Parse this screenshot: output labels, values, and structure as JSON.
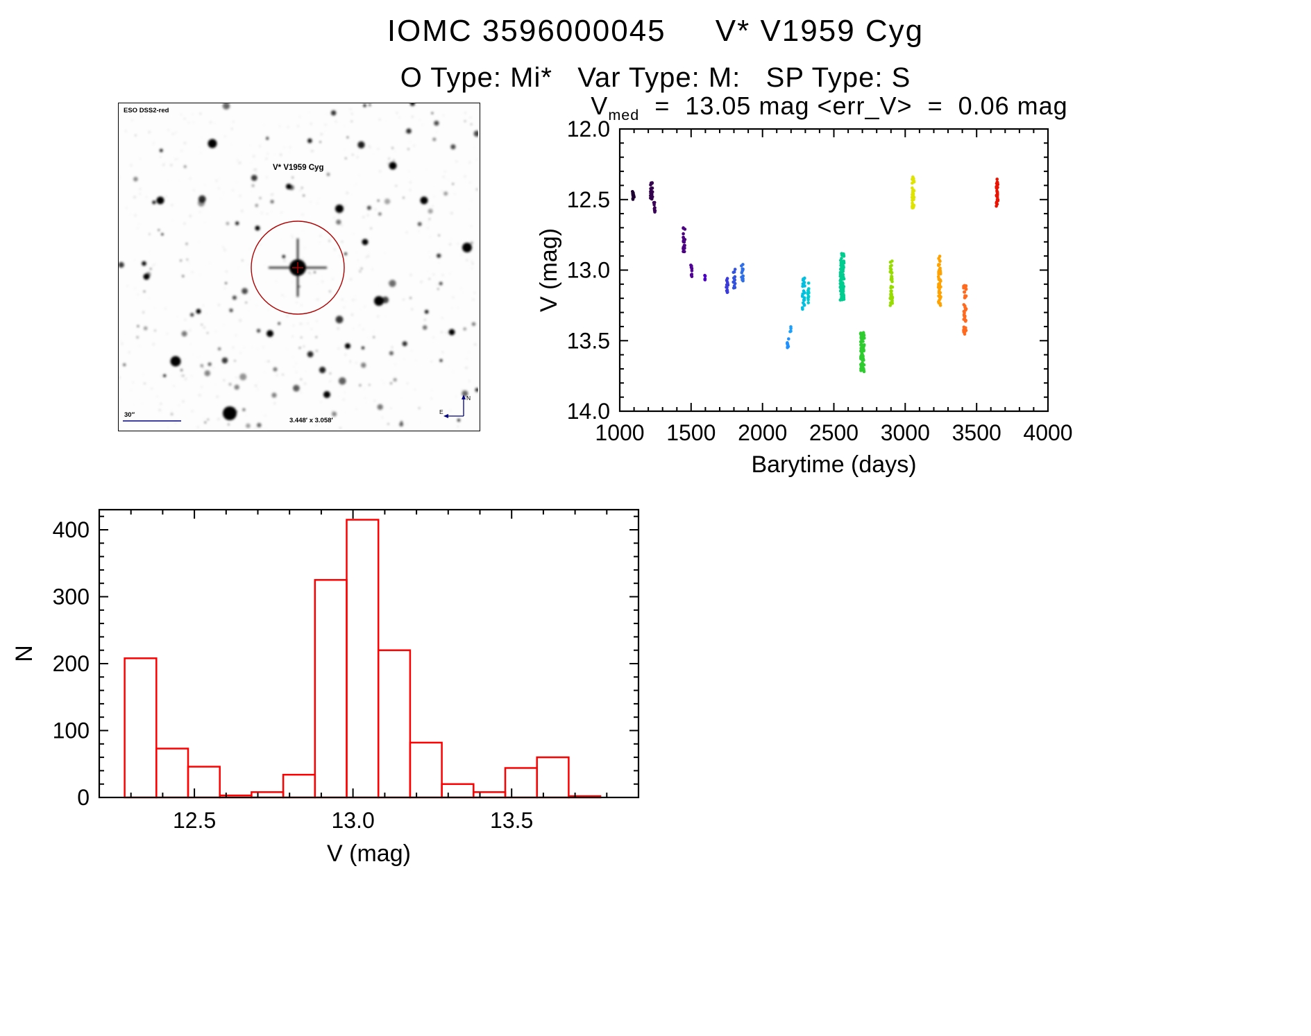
{
  "page": {
    "title": "IOMC 3596000045     V* V1959 Cyg",
    "subtitle": "O Type: Mi*   Var Type: M:   SP Type: S"
  },
  "finding_chart": {
    "survey_label": "ESO DSS2-red",
    "target_label": "V* V1959 Cyg",
    "scale_bar_label": "30″",
    "fov_label": "3.448′ x 3.058′",
    "compass": {
      "north": "N",
      "east": "E"
    },
    "annotation_color": "#000080",
    "marker_color": "#b00000"
  },
  "chart_data": [
    {
      "type": "scatter",
      "name": "lightcurve",
      "title": "Vmed  =  13.05 mag <err_V>  =  0.06 mag",
      "title_parts": {
        "prefix": "V",
        "sub": "med",
        "rest": "  =  13.05 mag <err_V>  =  0.06 mag"
      },
      "v_med_mag": 13.05,
      "err_v_mag": 0.06,
      "xlabel": "Barytime (days)",
      "ylabel": "V (mag)",
      "xlim": [
        1000,
        4000
      ],
      "ylim": [
        12.0,
        14.0
      ],
      "y_axis_reversed": true,
      "grid": false,
      "legend": "none",
      "minor_x_step": 100,
      "minor_y_step": 0.1,
      "xticks": [
        {
          "v": 1000,
          "label": "1000"
        },
        {
          "v": 1500,
          "label": "1500"
        },
        {
          "v": 2000,
          "label": "2000"
        },
        {
          "v": 2500,
          "label": "2500"
        },
        {
          "v": 3000,
          "label": "3000"
        },
        {
          "v": 3500,
          "label": "3500"
        },
        {
          "v": 4000,
          "label": "4000"
        }
      ],
      "yticks": [
        {
          "v": 12.0,
          "label": "12.0"
        },
        {
          "v": 12.5,
          "label": "12.5"
        },
        {
          "v": 13.0,
          "label": "13.0"
        },
        {
          "v": 13.5,
          "label": "13.5"
        },
        {
          "v": 14.0,
          "label": "14.0"
        }
      ],
      "clusters": [
        {
          "t": 1095,
          "t_spread": 6,
          "v_min": 12.44,
          "v_max": 12.5,
          "n": 14,
          "color": "#1c0030"
        },
        {
          "t": 1222,
          "t_spread": 8,
          "v_min": 12.38,
          "v_max": 12.5,
          "n": 26,
          "color": "#33004d"
        },
        {
          "t": 1243,
          "t_spread": 5,
          "v_min": 12.52,
          "v_max": 12.59,
          "n": 9,
          "color": "#3a0057"
        },
        {
          "t": 1450,
          "t_spread": 7,
          "v_min": 12.7,
          "v_max": 12.87,
          "n": 24,
          "color": "#4b0082"
        },
        {
          "t": 1502,
          "t_spread": 5,
          "v_min": 12.93,
          "v_max": 13.07,
          "n": 10,
          "color": "#500096"
        },
        {
          "t": 1598,
          "t_spread": 5,
          "v_min": 13.02,
          "v_max": 13.07,
          "n": 5,
          "color": "#4a00c0"
        },
        {
          "t": 1752,
          "t_spread": 7,
          "v_min": 13.04,
          "v_max": 13.16,
          "n": 13,
          "color": "#3b3bd9"
        },
        {
          "t": 1802,
          "t_spread": 7,
          "v_min": 12.97,
          "v_max": 13.13,
          "n": 15,
          "color": "#3353de"
        },
        {
          "t": 1858,
          "t_spread": 7,
          "v_min": 12.96,
          "v_max": 13.08,
          "n": 13,
          "color": "#2e6ee6"
        },
        {
          "t": 2178,
          "t_spread": 5,
          "v_min": 13.48,
          "v_max": 13.57,
          "n": 9,
          "color": "#1e90ff"
        },
        {
          "t": 2196,
          "t_spread": 4,
          "v_min": 13.4,
          "v_max": 13.45,
          "n": 4,
          "color": "#1ea0fa"
        },
        {
          "t": 2288,
          "t_spread": 9,
          "v_min": 13.05,
          "v_max": 13.28,
          "n": 24,
          "color": "#00bfe0"
        },
        {
          "t": 2322,
          "t_spread": 6,
          "v_min": 13.08,
          "v_max": 13.24,
          "n": 13,
          "color": "#00c9cf"
        },
        {
          "t": 2558,
          "t_spread": 13,
          "v_min": 12.88,
          "v_max": 13.22,
          "n": 95,
          "color": "#00cc8f"
        },
        {
          "t": 2700,
          "t_spread": 13,
          "v_min": 13.44,
          "v_max": 13.72,
          "n": 85,
          "color": "#2fcc2f"
        },
        {
          "t": 2903,
          "t_spread": 8,
          "v_min": 12.93,
          "v_max": 13.26,
          "n": 42,
          "color": "#97dc00"
        },
        {
          "t": 3055,
          "t_spread": 8,
          "v_min": 12.34,
          "v_max": 12.56,
          "n": 38,
          "color": "#dfe300"
        },
        {
          "t": 3240,
          "t_spread": 9,
          "v_min": 12.9,
          "v_max": 13.28,
          "n": 48,
          "color": "#ffa200"
        },
        {
          "t": 3418,
          "t_spread": 9,
          "v_min": 13.08,
          "v_max": 13.46,
          "n": 42,
          "color": "#ff6a1e"
        },
        {
          "t": 3643,
          "t_spread": 7,
          "v_min": 12.35,
          "v_max": 12.55,
          "n": 32,
          "color": "#ea1200"
        }
      ]
    },
    {
      "type": "bar",
      "name": "histogram",
      "title": "",
      "xlabel": "V (mag)",
      "ylabel": "N",
      "xlim": [
        12.2,
        13.9
      ],
      "ylim": [
        0,
        430
      ],
      "grid": false,
      "legend": "none",
      "minor_x_step": 0.1,
      "minor_y_step": 20,
      "xticks": [
        {
          "v": 12.5,
          "label": "12.5"
        },
        {
          "v": 13.0,
          "label": "13.0"
        },
        {
          "v": 13.5,
          "label": "13.5"
        }
      ],
      "yticks": [
        {
          "v": 0,
          "label": "0"
        },
        {
          "v": 100,
          "label": "100"
        },
        {
          "v": 200,
          "label": "200"
        },
        {
          "v": 300,
          "label": "300"
        },
        {
          "v": 400,
          "label": "400"
        }
      ],
      "bin_start": 12.28,
      "bin_width": 0.1,
      "counts": [
        208,
        73,
        46,
        3,
        8,
        34,
        325,
        415,
        220,
        82,
        20,
        8,
        44,
        60,
        2
      ],
      "bar_color": "#ff0000"
    }
  ]
}
